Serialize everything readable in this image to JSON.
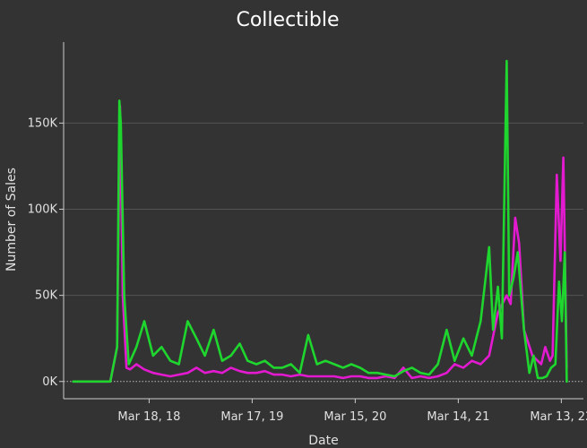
{
  "chart_data": {
    "type": "line",
    "title": "Collectible",
    "xlabel": "Date",
    "ylabel": "Number of Sales",
    "x_tick_labels": [
      "Mar 18, 18",
      "Mar 17, 19",
      "Mar 15, 20",
      "Mar 14, 21",
      "Mar 13, 22"
    ],
    "y_tick_labels": [
      "0K",
      "50K",
      "100K",
      "150K"
    ],
    "y_ticks": [
      0,
      50000,
      100000,
      150000
    ],
    "ylim": [
      -10000,
      197000
    ],
    "xlim": [
      "2017-05-20",
      "2022-05-30"
    ],
    "grid": "horizontal",
    "colors": {
      "background": "#333333",
      "grid": "#555555",
      "axis": "#cccccc"
    },
    "series": [
      {
        "color": "#e31ad0",
        "x": [
          "2017-06-23",
          "2017-08-01",
          "2017-09-01",
          "2017-11-01",
          "2017-11-25",
          "2017-12-05",
          "2017-12-15",
          "2017-12-28",
          "2018-01-10",
          "2018-02-01",
          "2018-03-01",
          "2018-04-01",
          "2018-05-01",
          "2018-06-01",
          "2018-07-01",
          "2018-08-01",
          "2018-09-01",
          "2018-10-01",
          "2018-11-01",
          "2018-12-01",
          "2019-01-01",
          "2019-02-01",
          "2019-03-01",
          "2019-04-01",
          "2019-05-01",
          "2019-06-01",
          "2019-07-01",
          "2019-08-01",
          "2019-09-01",
          "2019-10-01",
          "2019-11-01",
          "2019-12-01",
          "2020-01-01",
          "2020-02-01",
          "2020-03-01",
          "2020-04-01",
          "2020-05-01",
          "2020-06-01",
          "2020-07-01",
          "2020-08-01",
          "2020-09-01",
          "2020-10-01",
          "2020-11-01",
          "2020-12-01",
          "2021-01-01",
          "2021-02-01",
          "2021-03-01",
          "2021-04-01",
          "2021-05-01",
          "2021-06-01",
          "2021-07-01",
          "2021-08-01",
          "2021-09-01",
          "2021-09-15",
          "2021-10-01",
          "2021-10-15",
          "2021-11-01",
          "2021-12-01",
          "2022-01-01",
          "2022-01-15",
          "2022-02-01",
          "2022-02-10",
          "2022-02-25",
          "2022-03-10",
          "2022-03-20",
          "2022-04-01"
        ],
        "values": [
          0,
          0,
          0,
          0,
          20000,
          160000,
          50000,
          8000,
          7000,
          10000,
          7000,
          5000,
          4000,
          3000,
          4000,
          5000,
          8000,
          5000,
          6000,
          5000,
          8000,
          6000,
          5000,
          5000,
          6000,
          4000,
          4000,
          3000,
          4000,
          3000,
          3000,
          3000,
          3000,
          2000,
          3000,
          3000,
          2000,
          2000,
          3000,
          2000,
          8000,
          2000,
          3000,
          2000,
          3000,
          5000,
          10000,
          8000,
          12000,
          10000,
          15000,
          40000,
          50000,
          45000,
          95000,
          80000,
          30000,
          15000,
          10000,
          20000,
          12000,
          15000,
          120000,
          70000,
          130000,
          8000
        ]
      },
      {
        "color": "#1fd62e",
        "x": [
          "2017-06-23",
          "2017-08-01",
          "2017-09-01",
          "2017-11-01",
          "2017-11-25",
          "2017-12-03",
          "2017-12-08",
          "2017-12-20",
          "2018-01-05",
          "2018-02-01",
          "2018-03-01",
          "2018-04-01",
          "2018-05-01",
          "2018-06-01",
          "2018-07-01",
          "2018-08-01",
          "2018-09-01",
          "2018-10-01",
          "2018-11-01",
          "2018-12-01",
          "2019-01-01",
          "2019-02-01",
          "2019-03-01",
          "2019-04-01",
          "2019-05-01",
          "2019-06-01",
          "2019-07-01",
          "2019-08-01",
          "2019-09-01",
          "2019-10-01",
          "2019-11-01",
          "2019-12-01",
          "2020-01-01",
          "2020-02-01",
          "2020-03-01",
          "2020-04-01",
          "2020-05-01",
          "2020-06-01",
          "2020-07-01",
          "2020-08-01",
          "2020-09-01",
          "2020-10-01",
          "2020-11-01",
          "2020-12-01",
          "2021-01-01",
          "2021-02-01",
          "2021-03-01",
          "2021-04-01",
          "2021-05-01",
          "2021-06-01",
          "2021-07-01",
          "2021-07-15",
          "2021-08-01",
          "2021-08-15",
          "2021-09-01",
          "2021-09-10",
          "2021-09-25",
          "2021-10-10",
          "2021-11-01",
          "2021-11-20",
          "2021-12-05",
          "2021-12-20",
          "2022-01-05",
          "2022-01-20",
          "2022-02-05",
          "2022-02-20",
          "2022-03-05",
          "2022-03-15",
          "2022-03-25",
          "2022-04-01"
        ],
        "values": [
          0,
          0,
          0,
          0,
          20000,
          163000,
          150000,
          50000,
          10000,
          20000,
          35000,
          15000,
          20000,
          12000,
          10000,
          35000,
          25000,
          15000,
          30000,
          12000,
          15000,
          22000,
          12000,
          10000,
          12000,
          8000,
          8000,
          10000,
          5000,
          27000,
          10000,
          12000,
          10000,
          8000,
          10000,
          8000,
          5000,
          5000,
          4000,
          3000,
          6000,
          8000,
          5000,
          4000,
          10000,
          30000,
          12000,
          25000,
          15000,
          35000,
          78000,
          30000,
          55000,
          25000,
          186000,
          50000,
          60000,
          75000,
          30000,
          5000,
          15000,
          2000,
          2000,
          3000,
          8000,
          10000,
          58000,
          35000,
          75000,
          0
        ]
      }
    ]
  }
}
